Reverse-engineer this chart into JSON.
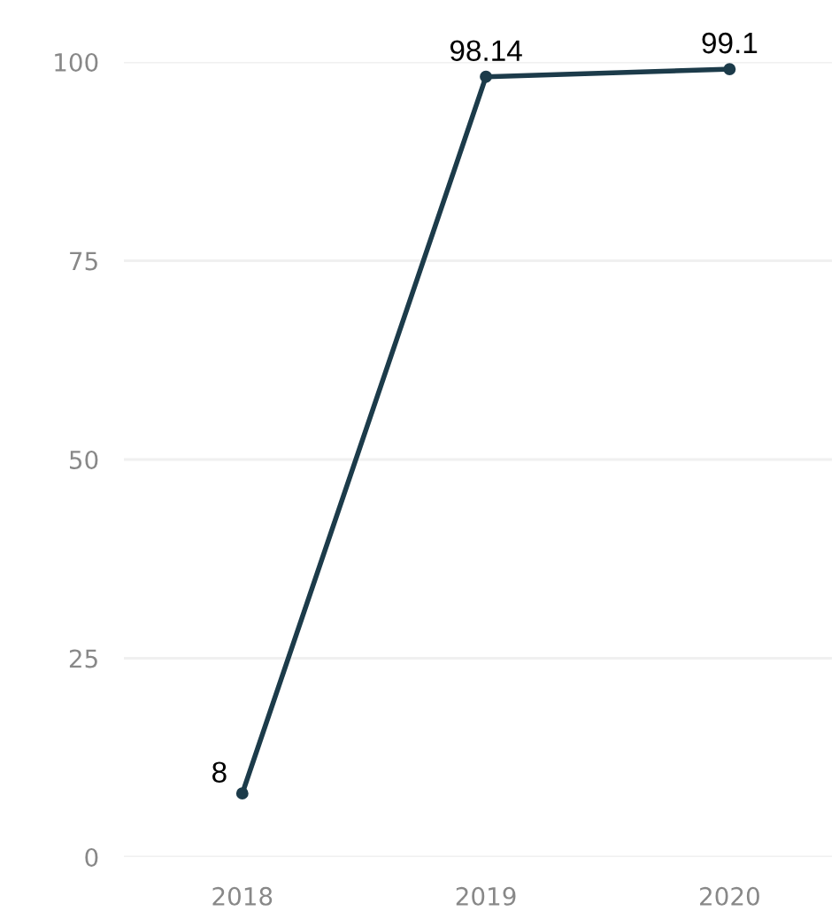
{
  "chart_data": {
    "type": "line",
    "categories": [
      "2018",
      "2019",
      "2020"
    ],
    "series": [
      {
        "color": "#1c3b4a",
        "values": [
          8,
          98.14,
          99.1
        ]
      }
    ],
    "ylim": [
      0,
      100
    ],
    "yticks": [
      0,
      25,
      50,
      75,
      100
    ],
    "grid": "y",
    "marker": "circle",
    "line_style": "solid",
    "data_labels": true
  }
}
